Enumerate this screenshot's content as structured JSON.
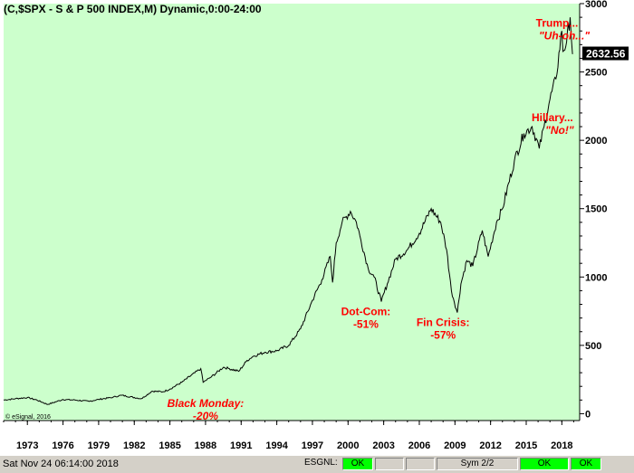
{
  "window": {
    "title": "(C,$SPX - S & P 500 INDEX,M) Dynamic,0:00-24:00"
  },
  "chart_data": {
    "type": "line",
    "title": "(C,$SPX - S & P 500 INDEX,M) Dynamic,0:00-24:00",
    "xlabel": "",
    "ylabel": "",
    "xlim": [
      1971,
      2019.5
    ],
    "ylim": [
      -50,
      3000
    ],
    "x_ticks": [
      "1973",
      "1976",
      "1979",
      "1982",
      "1985",
      "1988",
      "1991",
      "1994",
      "1997",
      "2000",
      "2003",
      "2006",
      "2009",
      "2012",
      "2015",
      "2018"
    ],
    "y_ticks": [
      "3000",
      "2500",
      "2000",
      "1500",
      "1000",
      "500",
      "0"
    ],
    "grid": false,
    "background": "#ccffcc",
    "line_color": "#000000",
    "last_price": "2632.56",
    "copyright": "© eSignal, 2016",
    "series": [
      {
        "x": [
          1971.0,
          1972.0,
          1973.0,
          1973.8,
          1974.7,
          1975.5,
          1976.0,
          1977.0,
          1978.2,
          1979.0,
          1980.2,
          1980.9,
          1982.6,
          1983.5,
          1984.4,
          1985.0,
          1986.0,
          1987.6,
          1987.8,
          1988.5,
          1989.5,
          1990.0,
          1990.8,
          1991.5,
          1992.0,
          1993.0,
          1994.0,
          1995.0,
          1996.0,
          1997.0,
          1997.8,
          1998.5,
          1998.7,
          1999.0,
          1999.5,
          2000.2,
          2000.7,
          2001.0,
          2001.7,
          2002.2,
          2002.8,
          2003.3,
          2004.0,
          2005.0,
          2006.0,
          2007.0,
          2007.8,
          2008.3,
          2008.7,
          2009.2,
          2009.5,
          2010.0,
          2010.5,
          2011.3,
          2011.8,
          2012.5,
          2013.0,
          2014.0,
          2014.8,
          2015.5,
          2016.1,
          2016.5,
          2017.0,
          2017.5,
          2018.0,
          2018.1,
          2018.4,
          2018.7,
          2018.9
        ],
        "y": [
          100,
          110,
          118,
          100,
          68,
          90,
          104,
          100,
          90,
          105,
          120,
          135,
          110,
          165,
          160,
          180,
          230,
          330,
          230,
          270,
          340,
          330,
          310,
          390,
          420,
          450,
          460,
          500,
          620,
          830,
          980,
          1150,
          960,
          1250,
          1400,
          1480,
          1400,
          1300,
          1060,
          1000,
          820,
          950,
          1130,
          1200,
          1320,
          1500,
          1400,
          1200,
          900,
          740,
          950,
          1120,
          1080,
          1340,
          1150,
          1400,
          1500,
          1850,
          2050,
          2100,
          1940,
          2100,
          2300,
          2450,
          2800,
          2650,
          2720,
          2900,
          2630
        ]
      }
    ],
    "annotations": [
      {
        "lines": [
          "Black Monday:",
          "-20%"
        ],
        "x": 1988.0,
        "y": 50
      },
      {
        "lines": [
          "Dot-Com:",
          "-51%"
        ],
        "x": 2001.5,
        "y": 720
      },
      {
        "lines": [
          "Fin Crisis:",
          "-57%"
        ],
        "x": 2008.0,
        "y": 640
      },
      {
        "lines": [
          "Hillary...",
          "\"No!\""
        ],
        "x": 2017.2,
        "y": 2140
      },
      {
        "lines": [
          "Trump...",
          "\"Uh-oh...\""
        ],
        "x": 2020.0,
        "y": 2830
      }
    ]
  },
  "status_bar": {
    "time": "Sat Nov 24 06:14:00 2018",
    "esgnl_label": "ESGNL:",
    "ok_1": "OK",
    "sym": "Sym 2/2",
    "ok_2": "OK",
    "ok_3": "OK"
  }
}
